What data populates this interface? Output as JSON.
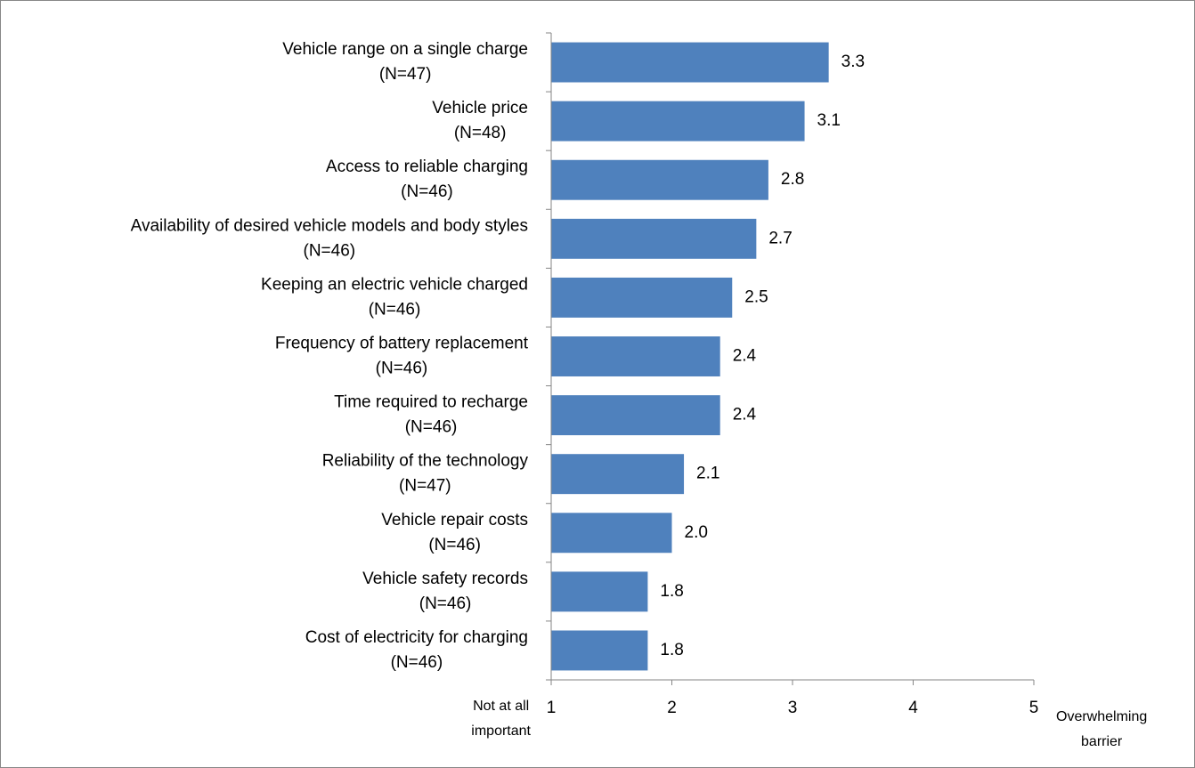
{
  "chart_data": {
    "type": "barh",
    "categories": [
      "Vehicle range on a single charge\n(N=47)",
      "Vehicle price\n(N=48)",
      "Access to reliable charging\n(N=46)",
      "Availability of desired vehicle models and body styles\n(N=46)",
      "Keeping an electric vehicle charged\n(N=46)",
      "Frequency of battery replacement\n(N=46)",
      "Time required to recharge\n(N=46)",
      "Reliability of the technology\n(N=47)",
      "Vehicle repair costs\n(N=46)",
      "Vehicle safety records\n(N=46)",
      "Cost of electricity for charging\n(N=46)"
    ],
    "values": [
      3.3,
      3.1,
      2.8,
      2.7,
      2.5,
      2.4,
      2.4,
      2.1,
      2.0,
      1.8,
      1.8
    ],
    "value_labels": [
      "3.3",
      "3.1",
      "2.8",
      "2.7",
      "2.5",
      "2.4",
      "2.4",
      "2.1",
      "2.0",
      "1.8",
      "1.8"
    ],
    "color": "#4f81bd",
    "xlim": [
      1,
      5
    ],
    "xticks": [
      1,
      2,
      3,
      4,
      5
    ],
    "x_min_label": "Not at all\nimportant",
    "x_max_label": "Overwhelming\nbarrier"
  }
}
